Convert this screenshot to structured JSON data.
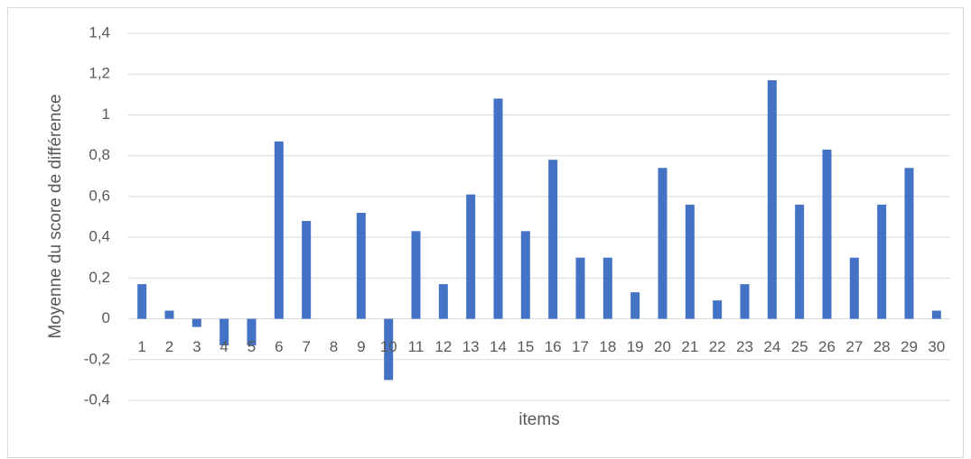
{
  "chart_data": {
    "type": "bar",
    "x_label": "items",
    "y_label": "Moyenne du score de différence",
    "categories": [
      "1",
      "2",
      "3",
      "4",
      "5",
      "6",
      "7",
      "8",
      "9",
      "10",
      "11",
      "12",
      "13",
      "14",
      "15",
      "16",
      "17",
      "18",
      "19",
      "20",
      "21",
      "22",
      "23",
      "24",
      "25",
      "26",
      "27",
      "28",
      "29",
      "30"
    ],
    "values": [
      0.17,
      0.04,
      -0.04,
      -0.13,
      -0.13,
      0.87,
      0.48,
      0,
      0.52,
      -0.3,
      0.43,
      0.17,
      0.61,
      1.08,
      0.43,
      0.78,
      0.3,
      0.3,
      0.13,
      0.74,
      0.56,
      0.09,
      0.17,
      1.17,
      0.56,
      0.83,
      0.3,
      0.56,
      0.74,
      0.04
    ],
    "color": "#4472c4",
    "ylim": [
      -0.4,
      1.4
    ],
    "yticks": [
      {
        "value": -0.4,
        "label": "-0,4"
      },
      {
        "value": -0.2,
        "label": "-0,2"
      },
      0,
      {
        "value": 0.2,
        "label": "0,2"
      },
      {
        "value": 0.4,
        "label": "0,4"
      },
      {
        "value": 0.6,
        "label": "0,6"
      },
      {
        "value": 0.8,
        "label": "0,8"
      },
      1,
      {
        "value": 1.2,
        "label": "1,2"
      },
      {
        "value": 1.4,
        "label": "1,4"
      }
    ],
    "grid": true
  }
}
